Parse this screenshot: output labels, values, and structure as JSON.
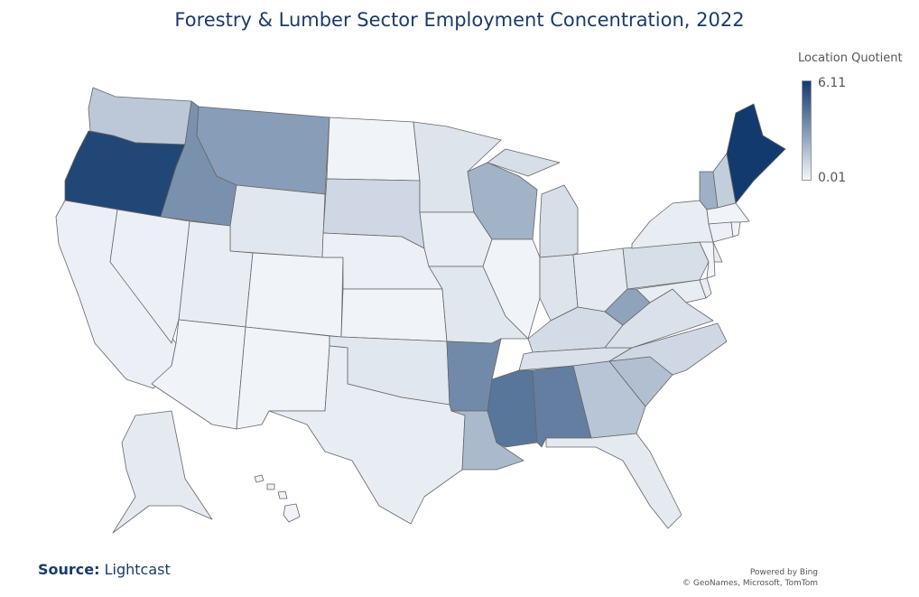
{
  "title": "Forestry & Lumber Sector Employment Concentration, 2022",
  "legend": {
    "title": "Location Quotient",
    "max_label": "6.11",
    "min_label": "0.01",
    "min": 0.01,
    "max": 6.11,
    "color_low": "#f3f6fa",
    "color_high": "#123a6e"
  },
  "source": {
    "label": "Source:",
    "value": "Lightcast"
  },
  "credits": {
    "line1": "Powered by Bing",
    "line2": "© GeoNames, Microsoft, TomTom"
  },
  "chart_data": {
    "type": "choropleth",
    "title": "Forestry & Lumber Sector Employment Concentration, 2022",
    "legend_title": "Location Quotient",
    "range": [
      0.01,
      6.11
    ],
    "legend_placement": "top-right",
    "values": {
      "ME": 6.11,
      "OR": 5.7,
      "MS": 4.2,
      "AL": 3.9,
      "AR": 3.5,
      "ID": 3.3,
      "MT": 2.9,
      "WV": 2.7,
      "VT": 2.3,
      "WI": 2.2,
      "LA": 2.0,
      "SC": 1.8,
      "GA": 1.6,
      "WA": 1.5,
      "NH": 1.3,
      "SD": 1.0,
      "NC": 1.0,
      "KY": 0.9,
      "PA": 0.8,
      "MI": 0.8,
      "VA": 0.7,
      "TN": 0.7,
      "IN": 0.6,
      "MN": 0.6,
      "OK": 0.5,
      "WY": 0.5,
      "MO": 0.5,
      "AK": 0.4,
      "OH": 0.4,
      "FL": 0.4,
      "UT": 0.3,
      "IA": 0.3,
      "NY": 0.3,
      "TX": 0.3,
      "DE": 0.3,
      "MD": 0.3,
      "NE": 0.2,
      "NV": 0.2,
      "CA": 0.2,
      "CT": 0.2,
      "AZ": 0.1,
      "NM": 0.1,
      "CO": 0.1,
      "KS": 0.1,
      "ND": 0.1,
      "IL": 0.1,
      "NJ": 0.1,
      "MA": 0.1,
      "RI": 0.1,
      "HI": 0.1
    }
  }
}
